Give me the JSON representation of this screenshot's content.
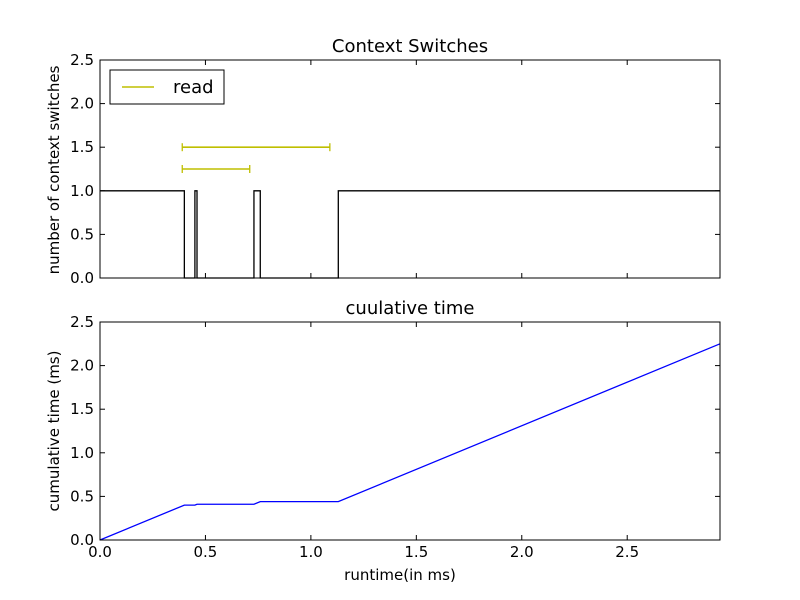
{
  "chart_data": [
    {
      "type": "line",
      "title": "Context Switches",
      "xlabel": "",
      "ylabel": "number of context switches",
      "xlim": [
        0,
        2.94
      ],
      "ylim": [
        0,
        2.5
      ],
      "xticks": [
        0.0,
        0.5,
        1.0,
        1.5,
        2.0,
        2.5
      ],
      "yticks": [
        "0.0",
        "0.5",
        "1.0",
        "1.5",
        "2.0",
        "2.5"
      ],
      "grid": false,
      "legend": {
        "placement": "top-left",
        "entries": [
          "read"
        ]
      },
      "series": [
        {
          "color": "#000000",
          "x": [
            0.0,
            0.4,
            0.4,
            0.45,
            0.45,
            0.46,
            0.46,
            0.73,
            0.73,
            0.76,
            0.76,
            1.13,
            1.13,
            2.94
          ],
          "y": [
            1,
            1,
            0,
            0,
            1,
            1,
            0,
            0,
            1,
            1,
            0,
            0,
            1,
            1
          ]
        }
      ],
      "intervals": [
        {
          "name": "read",
          "color": "#bfbf00",
          "x_start": 0.39,
          "x_end": 0.71,
          "y": 1.25
        },
        {
          "name": "read",
          "color": "#bfbf00",
          "x_start": 0.39,
          "x_end": 1.09,
          "y": 1.5
        }
      ]
    },
    {
      "type": "line",
      "title": "cuulative time",
      "xlabel": "runtime(in ms)",
      "ylabel": "cumulative time (ms)",
      "xlim": [
        0,
        2.94
      ],
      "ylim": [
        0,
        2.5
      ],
      "xticks": [
        "0.0",
        "0.5",
        "1.0",
        "1.5",
        "2.0",
        "2.5"
      ],
      "yticks": [
        "0.0",
        "0.5",
        "1.0",
        "1.5",
        "2.0",
        "2.5"
      ],
      "grid": false,
      "series": [
        {
          "color": "#0000ff",
          "x": [
            0.0,
            0.4,
            0.45,
            0.46,
            0.73,
            0.76,
            1.13,
            2.94
          ],
          "y": [
            0.0,
            0.4,
            0.4,
            0.41,
            0.41,
            0.44,
            0.44,
            2.25
          ]
        }
      ]
    }
  ]
}
